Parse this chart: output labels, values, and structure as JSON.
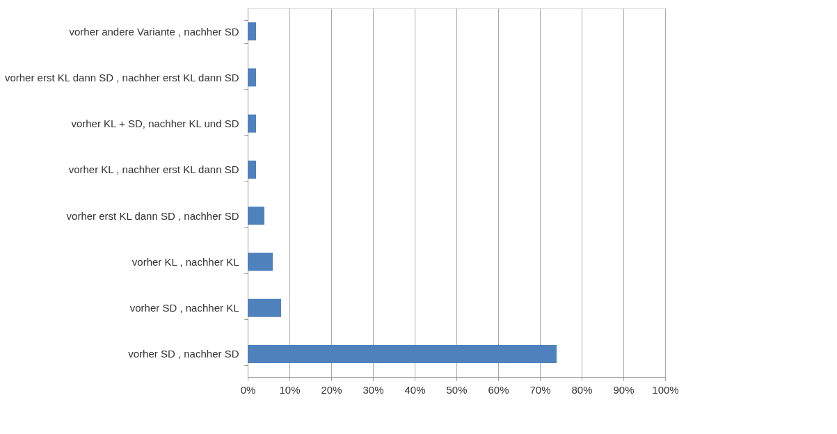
{
  "chart_data": {
    "type": "bar",
    "orientation": "horizontal",
    "categories": [
      "vorher andere Variante , nachher SD",
      "vorher erst KL dann SD , nachher erst KL dann SD",
      "vorher KL + SD, nachher KL und SD",
      "vorher KL , nachher erst KL dann SD",
      "vorher erst KL dann SD , nachher SD",
      "vorher KL , nachher KL",
      "vorher SD , nachher KL",
      "vorher SD , nachher SD"
    ],
    "values": [
      2,
      2,
      2,
      2,
      4,
      6,
      8,
      74
    ],
    "color": "#4f81bd",
    "xlim": [
      0,
      100
    ],
    "xticks": [
      {
        "value": 0,
        "label": "0%"
      },
      {
        "value": 10,
        "label": "10%"
      },
      {
        "value": 20,
        "label": "20%"
      },
      {
        "value": 30,
        "label": "30%"
      },
      {
        "value": 40,
        "label": "40%"
      },
      {
        "value": 50,
        "label": "50%"
      },
      {
        "value": 60,
        "label": "60%"
      },
      {
        "value": 70,
        "label": "70%"
      },
      {
        "value": 80,
        "label": "80%"
      },
      {
        "value": 90,
        "label": "90%"
      },
      {
        "value": 100,
        "label": "100%"
      }
    ],
    "grid": "x"
  }
}
